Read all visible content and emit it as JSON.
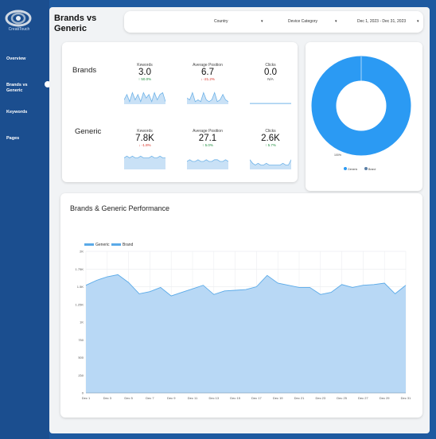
{
  "brand": {
    "logo_text": "CreatiTouch"
  },
  "nav": {
    "items": [
      {
        "label": "Overview"
      },
      {
        "label": "Brands vs Generic"
      },
      {
        "label": "Keywords"
      },
      {
        "label": "Pages"
      }
    ]
  },
  "page_title": "Brands vs Generic",
  "filters": {
    "country": "Country",
    "device": "Device Category",
    "date_range": "Dec 1, 2023 - Dec 31, 2023",
    "dropdown_glyph": "▾"
  },
  "scorecards": {
    "brands": {
      "label": "Brands",
      "metrics": [
        {
          "name": "Kewords",
          "value": "3.0",
          "change": "↑ 50.0%",
          "dir": "up"
        },
        {
          "name": "Average Position",
          "value": "6.7",
          "change": "↓ -21.2%",
          "dir": "down"
        },
        {
          "name": "Clicks",
          "value": "0.0",
          "change": "N/A",
          "dir": "na"
        }
      ]
    },
    "generic": {
      "label": "Generic",
      "metrics": [
        {
          "name": "Kewords",
          "value": "7.8K",
          "change": "↓ -1.8%",
          "dir": "down"
        },
        {
          "name": "Average Position",
          "value": "27.1",
          "change": "↑ 5.0%",
          "dir": "up"
        },
        {
          "name": "Clicks",
          "value": "2.6K",
          "change": "↑ 5.7%",
          "dir": "up"
        }
      ]
    }
  },
  "donut": {
    "slice_label": "100%",
    "legend": [
      "Generic",
      "Brand"
    ],
    "colors": {
      "generic": "#2b9af3",
      "brand": "#5b7fa6"
    }
  },
  "performance_title": "Brands & Generic Performance",
  "chart_data": {
    "type": "area",
    "title": "Brands & Generic Performance",
    "series": [
      {
        "name": "Generic",
        "values": [
          1520,
          1590,
          1640,
          1670,
          1560,
          1400,
          1430,
          1490,
          1370,
          1420,
          1470,
          1520,
          1390,
          1440,
          1450,
          1460,
          1500,
          1660,
          1550,
          1520,
          1490,
          1490,
          1390,
          1420,
          1530,
          1490,
          1520,
          1530,
          1550,
          1400,
          1520
        ]
      },
      {
        "name": "Brand",
        "values": [
          0,
          0,
          0,
          0,
          0,
          0,
          0,
          0,
          0,
          0,
          0,
          0,
          0,
          0,
          0,
          0,
          0,
          0,
          0,
          0,
          0,
          0,
          0,
          0,
          0,
          0,
          0,
          0,
          0,
          0,
          0
        ]
      }
    ],
    "x_labels": [
      "Dec 1",
      "Dec 3",
      "Dec 5",
      "Dec 7",
      "Dec 9",
      "Dec 11",
      "Dec 13",
      "Dec 15",
      "Dec 17",
      "Dec 19",
      "Dec 21",
      "Dec 23",
      "Dec 25",
      "Dec 27",
      "Dec 29",
      "Dec 31"
    ],
    "y_ticks": [
      "0",
      "250",
      "500",
      "750",
      "1K",
      "1.25K",
      "1.5K",
      "1.75K",
      "2K"
    ],
    "ylim": [
      0,
      2000
    ],
    "grid": true,
    "legend_position": "top-left",
    "colors": {
      "fill": "#b8d8f5",
      "line": "#5aaae8"
    }
  },
  "sparklines": {
    "brands": [
      [
        2,
        5,
        1,
        6,
        2,
        5,
        1,
        6,
        3,
        5,
        1,
        6,
        2,
        5,
        6,
        1
      ],
      [
        3,
        2,
        6,
        1,
        2,
        1,
        6,
        2,
        1,
        2,
        6,
        1,
        2,
        5,
        2,
        1
      ],
      [
        0,
        0,
        0,
        0,
        0,
        0,
        0,
        0,
        0,
        0,
        0,
        0,
        0,
        0,
        0,
        0
      ]
    ],
    "generic": [
      [
        6,
        7,
        6,
        7,
        6,
        6,
        7,
        6,
        6,
        6,
        7,
        6,
        6,
        7,
        6,
        6
      ],
      [
        4,
        5,
        4,
        4,
        5,
        4,
        4,
        5,
        4,
        4,
        5,
        5,
        4,
        4,
        5,
        4
      ],
      [
        5,
        3,
        2,
        3,
        2,
        2,
        3,
        2,
        2,
        2,
        2,
        2,
        3,
        2,
        2,
        5
      ]
    ]
  }
}
